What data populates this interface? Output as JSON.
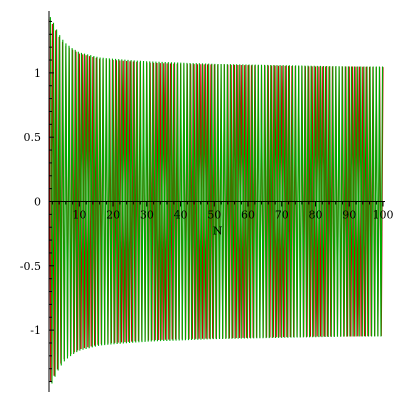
{
  "chart_data": {
    "type": "line",
    "title": "",
    "xlabel": "N",
    "ylabel": "",
    "xlim": [
      1,
      100
    ],
    "ylim": [
      -1.45,
      1.45
    ],
    "x_axis_at_y": 0,
    "x_ticks": [
      10,
      20,
      30,
      40,
      50,
      60,
      70,
      80,
      90,
      100
    ],
    "x_tick_labels": [
      "10",
      "20",
      "30",
      "40",
      "50",
      "60",
      "70",
      "80",
      "90",
      "100"
    ],
    "y_ticks": [
      -1,
      -0.5,
      0,
      0.5,
      1
    ],
    "y_tick_labels": [
      "-1",
      "-0.5",
      "0",
      "0.5",
      "1"
    ],
    "grid": false,
    "legend": "none",
    "series": [
      {
        "color": "#cc0000",
        "x": [
          1,
          2,
          3,
          4,
          5,
          6,
          8,
          10,
          13,
          16,
          20,
          25,
          30,
          40,
          50,
          60,
          70,
          80,
          90,
          100
        ],
        "upper": [
          1.42,
          1.38,
          1.33,
          1.28,
          1.24,
          1.21,
          1.18,
          1.15,
          1.13,
          1.11,
          1.1,
          1.09,
          1.08,
          1.07,
          1.065,
          1.06,
          1.055,
          1.05,
          1.05,
          1.045
        ],
        "lower": [
          -1.42,
          -1.38,
          -1.33,
          -1.28,
          -1.24,
          -1.21,
          -1.18,
          -1.15,
          -1.13,
          -1.11,
          -1.1,
          -1.09,
          -1.08,
          -1.07,
          -1.065,
          -1.06,
          -1.055,
          -1.05,
          -1.05,
          -1.045
        ]
      },
      {
        "color": "#00aa00",
        "x": [
          1,
          2,
          3,
          4,
          5,
          6,
          8,
          10,
          13,
          16,
          20,
          25,
          30,
          40,
          50,
          60,
          70,
          80,
          90,
          100
        ],
        "upper": [
          1.45,
          1.41,
          1.35,
          1.3,
          1.26,
          1.23,
          1.19,
          1.16,
          1.14,
          1.12,
          1.11,
          1.1,
          1.09,
          1.08,
          1.07,
          1.065,
          1.06,
          1.055,
          1.05,
          1.05
        ],
        "lower": [
          -1.45,
          -1.41,
          -1.35,
          -1.3,
          -1.26,
          -1.23,
          -1.19,
          -1.16,
          -1.14,
          -1.12,
          -1.11,
          -1.1,
          -1.09,
          -1.08,
          -1.07,
          -1.065,
          -1.06,
          -1.055,
          -1.05,
          -1.05
        ]
      }
    ]
  }
}
